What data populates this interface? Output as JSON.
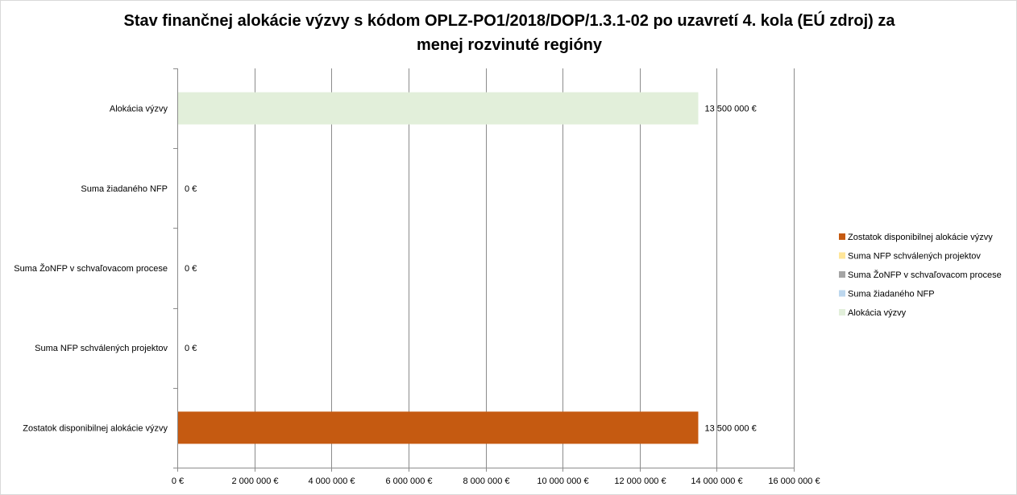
{
  "chart_data": {
    "type": "bar",
    "orientation": "horizontal",
    "title": "Stav finančnej alokácie výzvy s kódom OPLZ-PO1/2018/DOP/1.3.1-02 po uzavretí 4. kola (EÚ zdroj) za menej rozvinuté regióny",
    "title_lines": [
      "Stav finančnej alokácie výzvy s kódom OPLZ-PO1/2018/DOP/1.3.1-02 po uzavretí 4. kola (EÚ zdroj) za",
      "menej rozvinuté regióny"
    ],
    "xlabel": "",
    "ylabel": "",
    "xlim": [
      0,
      16000000
    ],
    "x_ticks": [
      0,
      2000000,
      4000000,
      6000000,
      8000000,
      10000000,
      12000000,
      14000000,
      16000000
    ],
    "x_tick_labels": [
      "0 €",
      "2 000 000 €",
      "4 000 000 €",
      "6 000 000 €",
      "8 000 000 €",
      "10 000 000 €",
      "12 000 000 €",
      "14 000 000 €",
      "16 000 000 €"
    ],
    "grid": true,
    "legend_position": "right",
    "categories": [
      "Alokácia výzvy",
      "Suma žiadaného NFP",
      "Suma ŽoNFP v schvaľovacom procese",
      "Suma NFP schválených projektov",
      "Zostatok disponibilnej alokácie výzvy"
    ],
    "series": [
      {
        "name": "Alokácia výzvy",
        "color": "#e2efda",
        "category": "Alokácia výzvy",
        "value": 13500000,
        "label": "13 500 000 €"
      },
      {
        "name": "Suma žiadaného NFP",
        "color": "#bdd7ee",
        "category": "Suma žiadaného NFP",
        "value": 0,
        "label": "0 €"
      },
      {
        "name": "Suma ŽoNFP v schvaľovacom procese",
        "color": "#a5a5a5",
        "category": "Suma ŽoNFP v schvaľovacom procese",
        "value": 0,
        "label": "0 €"
      },
      {
        "name": "Suma NFP schválených projektov",
        "color": "#ffe699",
        "category": "Suma NFP schválených projektov",
        "value": 0,
        "label": "0 €"
      },
      {
        "name": "Zostatok disponibilnej alokácie výzvy",
        "color": "#c55a11",
        "category": "Zostatok disponibilnej alokácie výzvy",
        "value": 13500000,
        "label": "13 500 000 €"
      }
    ],
    "legend_order": [
      "Zostatok disponibilnej alokácie výzvy",
      "Suma NFP schválených projektov",
      "Suma ŽoNFP v schvaľovacom procese",
      "Suma žiadaného NFP",
      "Alokácia výzvy"
    ]
  }
}
